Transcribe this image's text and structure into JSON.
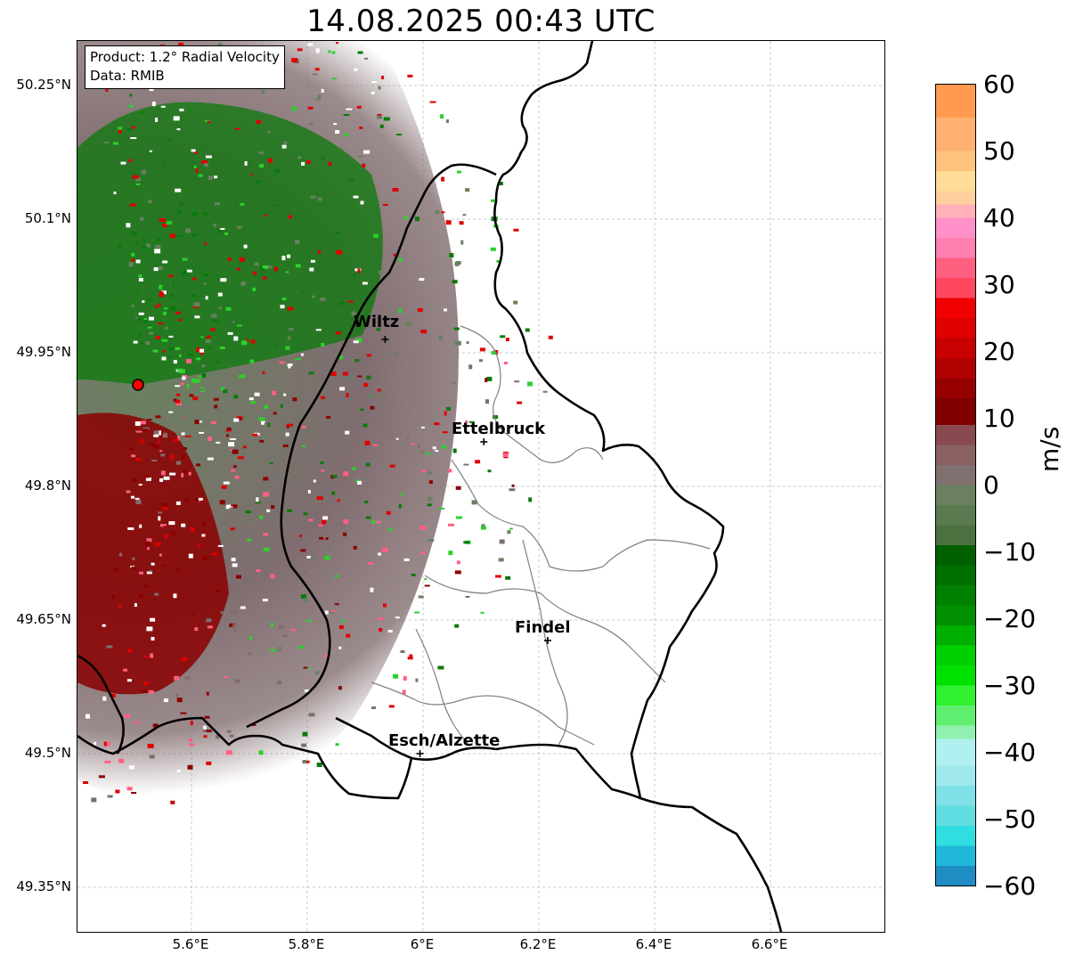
{
  "title": "14.08.2025 00:43 UTC",
  "info": {
    "product": "Product: 1.2° Radial Velocity",
    "data": "Data: RMIB"
  },
  "map": {
    "lat_ticks": [
      "50.25°N",
      "50.1°N",
      "49.95°N",
      "49.8°N",
      "49.65°N",
      "49.5°N",
      "49.35°N"
    ],
    "lon_ticks": [
      "5.6°E",
      "5.8°E",
      "6°E",
      "6.2°E",
      "6.4°E",
      "6.6°E"
    ],
    "cities": [
      {
        "name": "Wiltz",
        "lon": 5.93,
        "lat": 49.965
      },
      {
        "name": "Ettelbruck",
        "lon": 6.1,
        "lat": 49.85
      },
      {
        "name": "Findel",
        "lon": 6.21,
        "lat": 49.627
      },
      {
        "name": "Esch/Alzette",
        "lon": 5.99,
        "lat": 49.5
      }
    ],
    "radar_site": {
      "lon": 5.505,
      "lat": 49.915
    },
    "extent": {
      "lon": [
        5.4,
        6.79
      ],
      "lat": [
        49.3,
        50.3
      ]
    }
  },
  "colorbar": {
    "label": "m/s",
    "range": [
      -60,
      60
    ],
    "ticks": [
      "60",
      "50",
      "40",
      "30",
      "20",
      "10",
      "0",
      "−10",
      "−20",
      "−30",
      "−40",
      "−50",
      "−60"
    ],
    "colors": {
      "approaching_strong": "#1f78b4",
      "approaching": "#00e100",
      "near_zero": "#807070",
      "receding": "#800000",
      "receding_strong": "#ff9a50"
    }
  }
}
